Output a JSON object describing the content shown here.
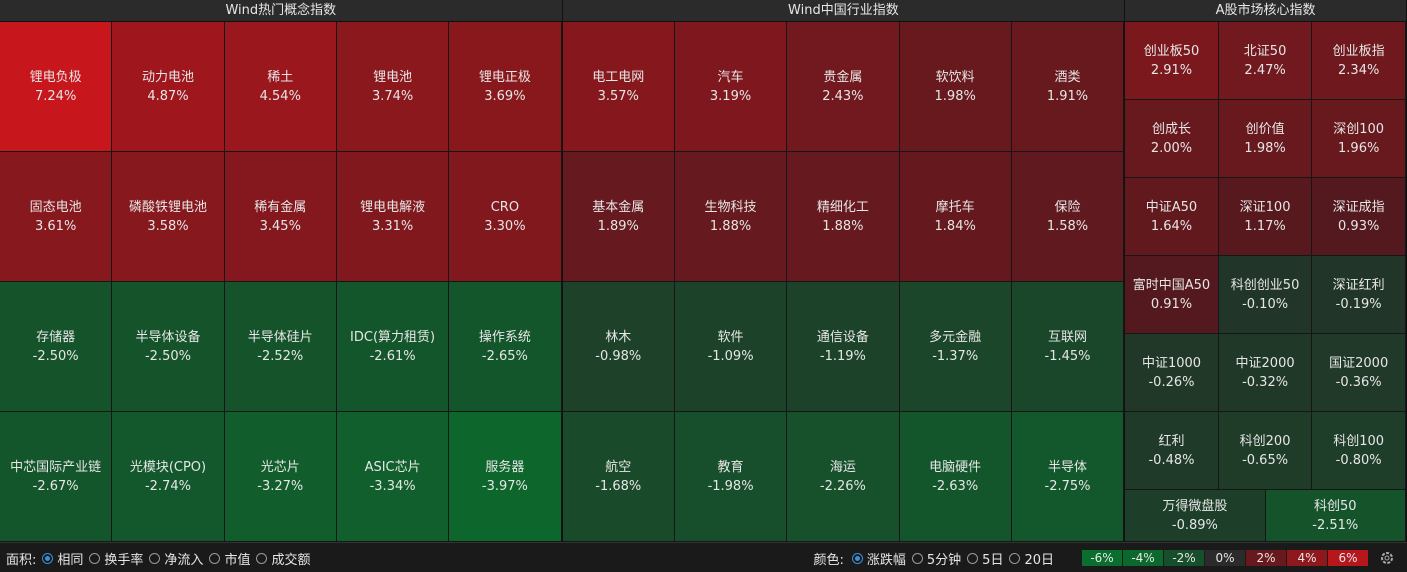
{
  "panels": [
    {
      "title": "Wind热门概念指数",
      "rows": [
        [
          {
            "name": "锂电负极",
            "change": "7.24%"
          },
          {
            "name": "动力电池",
            "change": "4.87%"
          },
          {
            "name": "稀土",
            "change": "4.54%"
          },
          {
            "name": "锂电池",
            "change": "3.74%"
          },
          {
            "name": "锂电正极",
            "change": "3.69%"
          }
        ],
        [
          {
            "name": "固态电池",
            "change": "3.61%"
          },
          {
            "name": "磷酸铁锂电池",
            "change": "3.58%"
          },
          {
            "name": "稀有金属",
            "change": "3.45%"
          },
          {
            "name": "锂电电解液",
            "change": "3.31%"
          },
          {
            "name": "CRO",
            "change": "3.30%"
          }
        ],
        [
          {
            "name": "存储器",
            "change": "-2.50%"
          },
          {
            "name": "半导体设备",
            "change": "-2.50%"
          },
          {
            "name": "半导体硅片",
            "change": "-2.52%"
          },
          {
            "name": "IDC(算力租赁)",
            "change": "-2.61%"
          },
          {
            "name": "操作系统",
            "change": "-2.65%"
          }
        ],
        [
          {
            "name": "中芯国际产业链",
            "change": "-2.67%"
          },
          {
            "name": "光模块(CPO)",
            "change": "-2.74%"
          },
          {
            "name": "光芯片",
            "change": "-3.27%"
          },
          {
            "name": "ASIC芯片",
            "change": "-3.34%"
          },
          {
            "name": "服务器",
            "change": "-3.97%"
          }
        ]
      ]
    },
    {
      "title": "Wind中国行业指数",
      "rows": [
        [
          {
            "name": "电工电网",
            "change": "3.57%"
          },
          {
            "name": "汽车",
            "change": "3.19%"
          },
          {
            "name": "贵金属",
            "change": "2.43%"
          },
          {
            "name": "软饮料",
            "change": "1.98%"
          },
          {
            "name": "酒类",
            "change": "1.91%"
          }
        ],
        [
          {
            "name": "基本金属",
            "change": "1.89%"
          },
          {
            "name": "生物科技",
            "change": "1.88%"
          },
          {
            "name": "精细化工",
            "change": "1.88%"
          },
          {
            "name": "摩托车",
            "change": "1.84%"
          },
          {
            "name": "保险",
            "change": "1.58%"
          }
        ],
        [
          {
            "name": "林木",
            "change": "-0.98%"
          },
          {
            "name": "软件",
            "change": "-1.09%"
          },
          {
            "name": "通信设备",
            "change": "-1.19%"
          },
          {
            "name": "多元金融",
            "change": "-1.37%"
          },
          {
            "name": "互联网",
            "change": "-1.45%"
          }
        ],
        [
          {
            "name": "航空",
            "change": "-1.68%"
          },
          {
            "name": "教育",
            "change": "-1.98%"
          },
          {
            "name": "海运",
            "change": "-2.26%"
          },
          {
            "name": "电脑硬件",
            "change": "-2.63%"
          },
          {
            "name": "半导体",
            "change": "-2.75%"
          }
        ]
      ]
    },
    {
      "title": "A股市场核心指数",
      "rows": [
        [
          {
            "name": "创业板50",
            "change": "2.91%"
          },
          {
            "name": "北证50",
            "change": "2.47%"
          },
          {
            "name": "创业板指",
            "change": "2.34%"
          }
        ],
        [
          {
            "name": "创成长",
            "change": "2.00%"
          },
          {
            "name": "创价值",
            "change": "1.98%"
          },
          {
            "name": "深创100",
            "change": "1.96%"
          }
        ],
        [
          {
            "name": "中证A50",
            "change": "1.64%"
          },
          {
            "name": "深证100",
            "change": "1.17%"
          },
          {
            "name": "深证成指",
            "change": "0.93%"
          }
        ],
        [
          {
            "name": "富时中国A50",
            "change": "0.91%"
          },
          {
            "name": "科创创业50",
            "change": "-0.10%"
          },
          {
            "name": "深证红利",
            "change": "-0.19%"
          }
        ],
        [
          {
            "name": "中证1000",
            "change": "-0.26%"
          },
          {
            "name": "中证2000",
            "change": "-0.32%"
          },
          {
            "name": "国证2000",
            "change": "-0.36%"
          }
        ],
        [
          {
            "name": "红利",
            "change": "-0.48%"
          },
          {
            "name": "科创200",
            "change": "-0.65%"
          },
          {
            "name": "科创100",
            "change": "-0.80%"
          }
        ],
        [
          {
            "name": "万得微盘股",
            "change": "-0.89%"
          },
          {
            "name": "科创50",
            "change": "-2.51%"
          }
        ]
      ]
    }
  ],
  "footer": {
    "area_label": "面积:",
    "area_options": [
      "相同",
      "换手率",
      "净流入",
      "市值",
      "成交额"
    ],
    "area_selected": 0,
    "color_label": "颜色:",
    "color_options": [
      "涨跌幅",
      "5分钟",
      "5日",
      "20日"
    ],
    "color_selected": 0,
    "legend": [
      "-6%",
      "-4%",
      "-2%",
      "0%",
      "2%",
      "4%",
      "6%"
    ]
  }
}
